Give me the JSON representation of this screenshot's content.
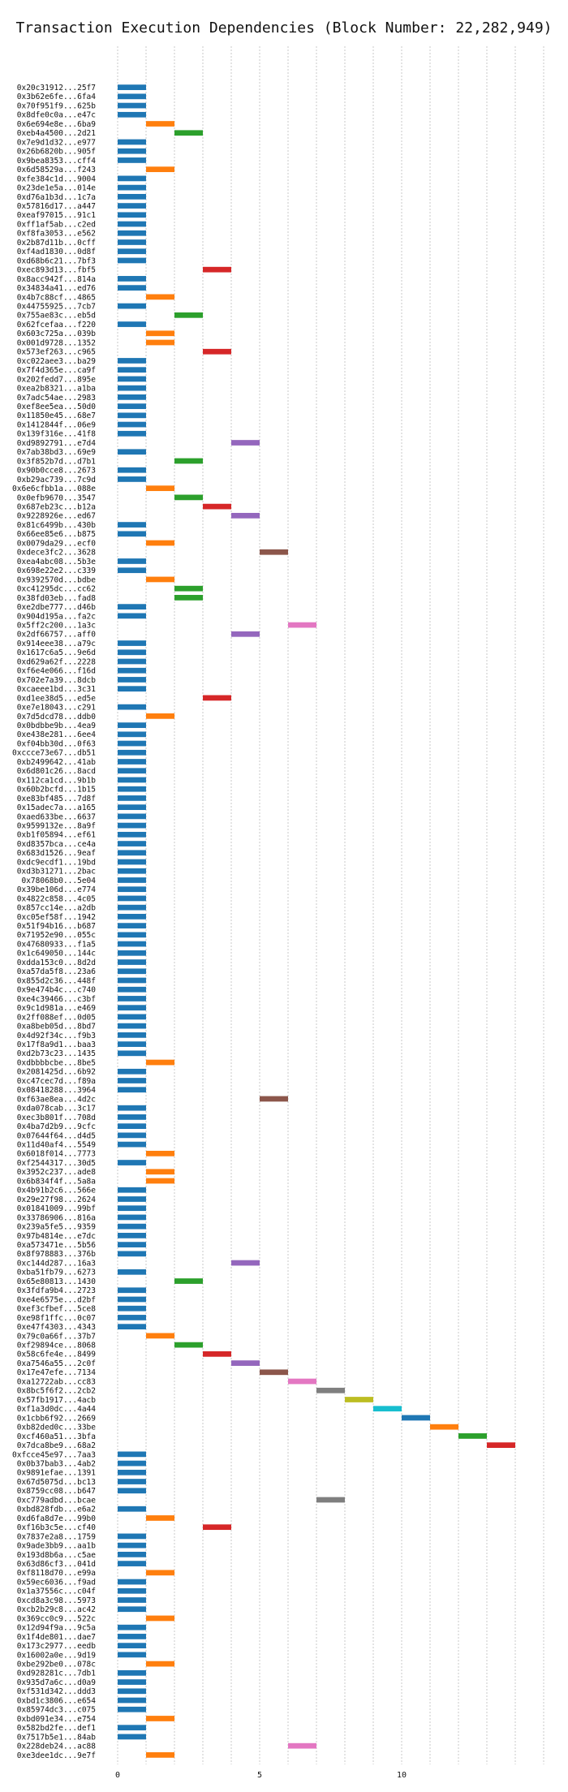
{
  "chart_data": {
    "type": "bar",
    "orientation": "horizontal-gantt",
    "title": "Transaction Execution Dependencies (Block Number: 22,282,949)",
    "xlabel": "",
    "ylabel": "",
    "xlim": [
      -0.5,
      15
    ],
    "xticks": [
      0,
      5,
      10
    ],
    "grid": true,
    "colors": [
      "#1f77b4",
      "#ff7f0e",
      "#2ca02c",
      "#d62728",
      "#9467bd",
      "#8c564b",
      "#e377c2",
      "#7f7f7f",
      "#bcbd22",
      "#17becf"
    ],
    "transactions": [
      {
        "label": "0x20c31912...25f7",
        "start": 1
      },
      {
        "label": "0x3b62e6fe...6fa4",
        "start": 1
      },
      {
        "label": "0x70f951f9...625b",
        "start": 1
      },
      {
        "label": "0x8dfe0c0a...e47c",
        "start": 1
      },
      {
        "label": "0x6e694e8e...6ba9",
        "start": 2
      },
      {
        "label": "0xeb4a4500...2d21",
        "start": 3
      },
      {
        "label": "0x7e9d1d32...e977",
        "start": 1
      },
      {
        "label": "0x26b6820b...905f",
        "start": 1
      },
      {
        "label": "0x9bea8353...cff4",
        "start": 1
      },
      {
        "label": "0x6d58529a...f243",
        "start": 2
      },
      {
        "label": "0xfe384c1d...9004",
        "start": 1
      },
      {
        "label": "0x23de1e5a...014e",
        "start": 1
      },
      {
        "label": "0xd76a1b3d...1c7a",
        "start": 1
      },
      {
        "label": "0x57816d17...a447",
        "start": 1
      },
      {
        "label": "0xeaf97015...91c1",
        "start": 1
      },
      {
        "label": "0xff1af5ab...c2ed",
        "start": 1
      },
      {
        "label": "0xf8fa3053...e562",
        "start": 1
      },
      {
        "label": "0x2b87d11b...0cff",
        "start": 1
      },
      {
        "label": "0xf4ad1830...0d8f",
        "start": 1
      },
      {
        "label": "0xd68b6c21...7bf3",
        "start": 1
      },
      {
        "label": "0xec893d13...fbf5",
        "start": 4
      },
      {
        "label": "0x8acc942f...814a",
        "start": 1
      },
      {
        "label": "0x34834a41...ed76",
        "start": 1
      },
      {
        "label": "0x4b7c88cf...4865",
        "start": 2
      },
      {
        "label": "0x44755925...7cb7",
        "start": 1
      },
      {
        "label": "0x755ae83c...eb5d",
        "start": 3
      },
      {
        "label": "0x62fcefaa...f220",
        "start": 1
      },
      {
        "label": "0x603c725a...039b",
        "start": 2
      },
      {
        "label": "0x001d9728...1352",
        "start": 2
      },
      {
        "label": "0x573ef263...c965",
        "start": 4
      },
      {
        "label": "0xc022aee3...ba29",
        "start": 1
      },
      {
        "label": "0x7f4d365e...ca9f",
        "start": 1
      },
      {
        "label": "0x202fedd7...895e",
        "start": 1
      },
      {
        "label": "0xea2b8321...a1ba",
        "start": 1
      },
      {
        "label": "0x7adc54ae...2983",
        "start": 1
      },
      {
        "label": "0xef8ee5ea...50d0",
        "start": 1
      },
      {
        "label": "0x11850e45...68e7",
        "start": 1
      },
      {
        "label": "0x1412844f...06e9",
        "start": 1
      },
      {
        "label": "0x139f316e...41f8",
        "start": 1
      },
      {
        "label": "0xd9892791...e7d4",
        "start": 5
      },
      {
        "label": "0x7ab38bd3...69e9",
        "start": 1
      },
      {
        "label": "0x3f852b7d...d7b1",
        "start": 3
      },
      {
        "label": "0x90b0cce8...2673",
        "start": 1
      },
      {
        "label": "0xb29ac739...7c9d",
        "start": 1
      },
      {
        "label": "0x6e6cfbb1a...088e",
        "start": 2
      },
      {
        "label": "0x0efb9670...3547",
        "start": 3
      },
      {
        "label": "0x687eb23c...b12a",
        "start": 4
      },
      {
        "label": "0x9228926e...ed67",
        "start": 5
      },
      {
        "label": "0x81c6499b...430b",
        "start": 1
      },
      {
        "label": "0x66ee85e6...b875",
        "start": 1
      },
      {
        "label": "0x0079da29...ecf0",
        "start": 2
      },
      {
        "label": "0xdece3fc2...3628",
        "start": 6
      },
      {
        "label": "0xea4abc08...5b3e",
        "start": 1
      },
      {
        "label": "0x698e22e2...c339",
        "start": 1
      },
      {
        "label": "0x9392570d...bdbe",
        "start": 2
      },
      {
        "label": "0xc41295dc...cc62",
        "start": 3
      },
      {
        "label": "0x38fd03eb...fad8",
        "start": 3
      },
      {
        "label": "0xe2dbe777...d46b",
        "start": 1
      },
      {
        "label": "0x904d195a...fa2c",
        "start": 1
      },
      {
        "label": "0x5ff2c200...1a3c",
        "start": 7
      },
      {
        "label": "0x2df66757...aff0",
        "start": 5
      },
      {
        "label": "0x914eee38...a79c",
        "start": 1
      },
      {
        "label": "0x1617c6a5...9e6d",
        "start": 1
      },
      {
        "label": "0xd629a62f...2228",
        "start": 1
      },
      {
        "label": "0xf6e4e066...f16d",
        "start": 1
      },
      {
        "label": "0x702e7a39...8dcb",
        "start": 1
      },
      {
        "label": "0xcaeee1bd...3c31",
        "start": 1
      },
      {
        "label": "0xd1ee38d5...ed5e",
        "start": 4
      },
      {
        "label": "0xe7e18043...c291",
        "start": 1
      },
      {
        "label": "0x7d5dcd78...ddb0",
        "start": 2
      },
      {
        "label": "0x0bdbbe9b...4ea9",
        "start": 1
      },
      {
        "label": "0xe438e281...6ee4",
        "start": 1
      },
      {
        "label": "0xf04bb30d...0f63",
        "start": 1
      },
      {
        "label": "0xccce73e67...db51",
        "start": 1
      },
      {
        "label": "0xb2499642...41ab",
        "start": 1
      },
      {
        "label": "0x6d801c26...8acd",
        "start": 1
      },
      {
        "label": "0x112ca1cd...9b1b",
        "start": 1
      },
      {
        "label": "0x60b2bcfd...1b15",
        "start": 1
      },
      {
        "label": "0xe83bf485...7d8f",
        "start": 1
      },
      {
        "label": "0x15adec7a...a165",
        "start": 1
      },
      {
        "label": "0xaed633be...6637",
        "start": 1
      },
      {
        "label": "0x9599132e...8a9f",
        "start": 1
      },
      {
        "label": "0xb1f05894...ef61",
        "start": 1
      },
      {
        "label": "0xd8357bca...ce4a",
        "start": 1
      },
      {
        "label": "0x683d1526...9eaf",
        "start": 1
      },
      {
        "label": "0xdc9ecdf1...19bd",
        "start": 1
      },
      {
        "label": "0xd3b31271...2bac",
        "start": 1
      },
      {
        "label": "0x78068b0...5e04",
        "start": 1
      },
      {
        "label": "0x39be106d...e774",
        "start": 1
      },
      {
        "label": "0x4822c858...4c05",
        "start": 1
      },
      {
        "label": "0x857cc14e...a2db",
        "start": 1
      },
      {
        "label": "0xc05ef58f...1942",
        "start": 1
      },
      {
        "label": "0x51f94b16...b687",
        "start": 1
      },
      {
        "label": "0x71952e90...055c",
        "start": 1
      },
      {
        "label": "0x47680933...f1a5",
        "start": 1
      },
      {
        "label": "0x1c649050...144c",
        "start": 1
      },
      {
        "label": "0xdda153c0...8d2d",
        "start": 1
      },
      {
        "label": "0xa57da5f8...23a6",
        "start": 1
      },
      {
        "label": "0x855d2c36...448f",
        "start": 1
      },
      {
        "label": "0x9e474b4c...c740",
        "start": 1
      },
      {
        "label": "0xe4c39466...c3bf",
        "start": 1
      },
      {
        "label": "0x9c1d981a...e469",
        "start": 1
      },
      {
        "label": "0x2ff088ef...0d05",
        "start": 1
      },
      {
        "label": "0xa8beb05d...8bd7",
        "start": 1
      },
      {
        "label": "0x4d92f34c...f9b3",
        "start": 1
      },
      {
        "label": "0x17f8a9d1...baa3",
        "start": 1
      },
      {
        "label": "0xd2b73c23...1435",
        "start": 1
      },
      {
        "label": "0xdbbbbcbe...8be5",
        "start": 2
      },
      {
        "label": "0x2081425d...6b92",
        "start": 1
      },
      {
        "label": "0xc47cec7d...f89a",
        "start": 1
      },
      {
        "label": "0x08418288...3964",
        "start": 1
      },
      {
        "label": "0xf63ae8ea...4d2c",
        "start": 6
      },
      {
        "label": "0xda078cab...3c17",
        "start": 1
      },
      {
        "label": "0xec3b801f...708d",
        "start": 1
      },
      {
        "label": "0x4ba7d2b9...9cfc",
        "start": 1
      },
      {
        "label": "0x07644f64...d4d5",
        "start": 1
      },
      {
        "label": "0x11d40af4...5549",
        "start": 1
      },
      {
        "label": "0x6018f014...7773",
        "start": 2
      },
      {
        "label": "0xf2544317...30d5",
        "start": 1
      },
      {
        "label": "0x3952c237...ade8",
        "start": 2
      },
      {
        "label": "0x6b834f4f...5a8a",
        "start": 2
      },
      {
        "label": "0x4b91b2c6...566e",
        "start": 1
      },
      {
        "label": "0x29e27f98...2624",
        "start": 1
      },
      {
        "label": "0x01841009...99bf",
        "start": 1
      },
      {
        "label": "0x33786906...816a",
        "start": 1
      },
      {
        "label": "0x239a5fe5...9359",
        "start": 1
      },
      {
        "label": "0x97b4814e...e7dc",
        "start": 1
      },
      {
        "label": "0xa573471e...5b56",
        "start": 1
      },
      {
        "label": "0x8f978883...376b",
        "start": 1
      },
      {
        "label": "0xc144d287...16a3",
        "start": 5
      },
      {
        "label": "0xba51fb79...6273",
        "start": 1
      },
      {
        "label": "0x65e80813...1430",
        "start": 3
      },
      {
        "label": "0x3fdfa9b4...2723",
        "start": 1
      },
      {
        "label": "0xe4e6575e...d2bf",
        "start": 1
      },
      {
        "label": "0xef3cfbef...5ce8",
        "start": 1
      },
      {
        "label": "0xe98f1ffc...0c07",
        "start": 1
      },
      {
        "label": "0xe47f4303...4343",
        "start": 1
      },
      {
        "label": "0x79c0a66f...37b7",
        "start": 2
      },
      {
        "label": "0xf29894ce...8068",
        "start": 3
      },
      {
        "label": "0x58c6fe4e...8499",
        "start": 4
      },
      {
        "label": "0xa7546a55...2c0f",
        "start": 5
      },
      {
        "label": "0x17e47efe...7134",
        "start": 6
      },
      {
        "label": "0xa12722ab...cc83",
        "start": 7
      },
      {
        "label": "0x8bc5f6f2...2cb2",
        "start": 8
      },
      {
        "label": "0x57fb1917...4acb",
        "start": 9
      },
      {
        "label": "0xf1a3d0dc...4a44",
        "start": 10
      },
      {
        "label": "0x1cbb6f92...2669",
        "start": 11
      },
      {
        "label": "0xb82ded0c...33be",
        "start": 12
      },
      {
        "label": "0xcf460a51...3bfa",
        "start": 13
      },
      {
        "label": "0x7dca8be9...68a2",
        "start": 14
      },
      {
        "label": "0xfcce45e97...7aa3",
        "start": 1
      },
      {
        "label": "0x0b37bab3...4ab2",
        "start": 1
      },
      {
        "label": "0x9891efae...1391",
        "start": 1
      },
      {
        "label": "0x67d5075d...bc13",
        "start": 1
      },
      {
        "label": "0x8759cc08...b647",
        "start": 1
      },
      {
        "label": "0xc779adbd...bcae",
        "start": 8
      },
      {
        "label": "0xbd828fdb...e6a2",
        "start": 1
      },
      {
        "label": "0xd6fa8d7e...99b0",
        "start": 2
      },
      {
        "label": "0xf16b3c5e...cf40",
        "start": 4
      },
      {
        "label": "0x7837e2a8...1759",
        "start": 1
      },
      {
        "label": "0x9ade3bb9...aa1b",
        "start": 1
      },
      {
        "label": "0x193d8b6a...c5ae",
        "start": 1
      },
      {
        "label": "0x63d86cf3...041d",
        "start": 1
      },
      {
        "label": "0xf8118d70...e99a",
        "start": 2
      },
      {
        "label": "0x59ec6036...f9ad",
        "start": 1
      },
      {
        "label": "0x1a37556c...c04f",
        "start": 1
      },
      {
        "label": "0xcd8a3c98...5973",
        "start": 1
      },
      {
        "label": "0xcb2b29c8...ac42",
        "start": 1
      },
      {
        "label": "0x369cc0c9...522c",
        "start": 2
      },
      {
        "label": "0x12d94f9a...9c5a",
        "start": 1
      },
      {
        "label": "0x1f4de801...dae7",
        "start": 1
      },
      {
        "label": "0x173c2977...eedb",
        "start": 1
      },
      {
        "label": "0x16002a0e...9d19",
        "start": 1
      },
      {
        "label": "0xbe292be0...078c",
        "start": 2
      },
      {
        "label": "0xd928281c...7db1",
        "start": 1
      },
      {
        "label": "0x935d7a6c...d0a9",
        "start": 1
      },
      {
        "label": "0xf531d342...ddd3",
        "start": 1
      },
      {
        "label": "0xbd1c3806...e654",
        "start": 1
      },
      {
        "label": "0x85974dc3...c075",
        "start": 1
      },
      {
        "label": "0xbd091e34...e754",
        "start": 2
      },
      {
        "label": "0x582bd2fe...def1",
        "start": 1
      },
      {
        "label": "0x7517b5e1...84ab",
        "start": 1
      },
      {
        "label": "0x228deb24...ac88",
        "start": 7
      },
      {
        "label": "0xe3dee1dc...9e7f",
        "start": 2
      }
    ]
  }
}
